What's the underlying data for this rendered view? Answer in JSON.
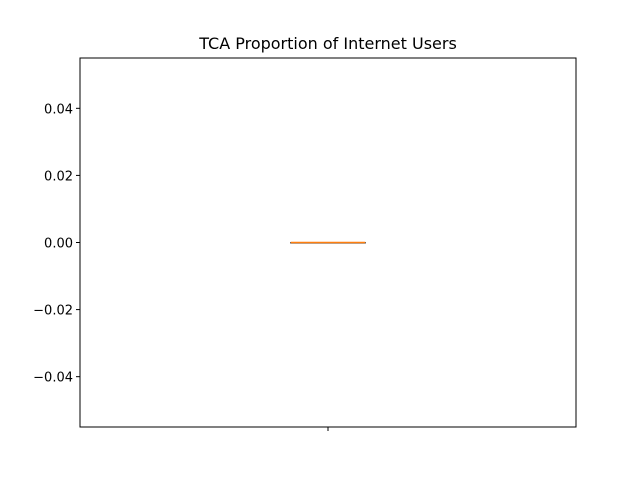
{
  "chart_data": {
    "type": "box",
    "title": "TCA Proportion of Internet Users",
    "xlabel": "",
    "ylabel": "",
    "categories": [
      ""
    ],
    "series": [
      {
        "values": [
          0,
          0,
          0,
          0,
          0
        ],
        "stats": {
          "whislo": 0,
          "q1": 0,
          "median": 0,
          "q3": 0,
          "whishi": 0
        }
      }
    ],
    "ylim": [
      -0.055,
      0.055
    ],
    "yticks": [
      -0.04,
      -0.02,
      0.0,
      0.02,
      0.04
    ],
    "ytick_labels": [
      "−0.04",
      "−0.02",
      "0.00",
      "0.02",
      "0.04"
    ],
    "grid": false,
    "colors": {
      "box": "#000000",
      "median": "#ff7f0e",
      "axes": "#000000"
    }
  }
}
